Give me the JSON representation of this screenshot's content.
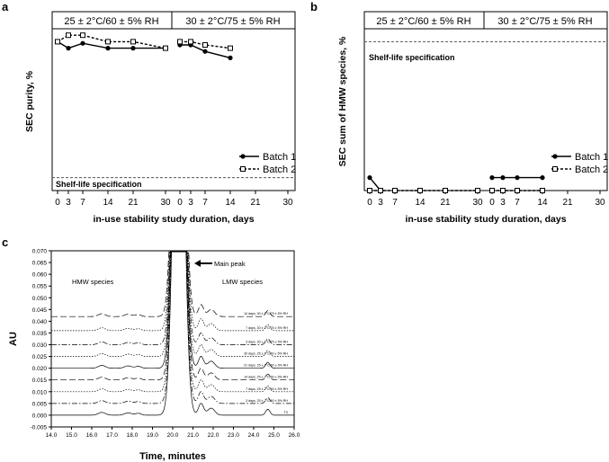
{
  "figure": {
    "panels": [
      {
        "label": "a",
        "ylabel": "SEC purity, %",
        "spec_label": "Shelf-life specification",
        "xlabel": "in-use stability study duration, days"
      },
      {
        "label": "b",
        "ylabel": "SEC sum of HMW species, %",
        "spec_label": "Shelf-life specification",
        "xlabel": "in-use stability study duration, days"
      },
      {
        "label": "c",
        "ylabel": "AU",
        "xlabel": "Time, minutes"
      }
    ],
    "condition_headers": [
      "25 ± 2°C/60 ± 5% RH",
      "30 ± 2°C/75 ± 5% RH"
    ],
    "legend": [
      "Batch 1",
      "Batch 2"
    ]
  },
  "chart_data": [
    {
      "type": "line",
      "panel": "a",
      "title": "",
      "xlabel": "in-use stability study duration, days",
      "ylabel": "SEC purity, %",
      "x_ticks": [
        0,
        3,
        7,
        14,
        21,
        30
      ],
      "segments": [
        "25 ± 2°C/60 ± 5% RH",
        "30 ± 2°C/75 ± 5% RH"
      ],
      "ylim": [
        0,
        100
      ],
      "spec_limit": 8,
      "series": [
        {
          "name": "Batch 1",
          "marker": "filled-circle",
          "seg1": {
            "x": [
              0,
              3,
              7,
              14,
              21,
              30
            ],
            "y": [
              92,
              88,
              91,
              88,
              88,
              88
            ]
          },
          "seg2": {
            "x": [
              0,
              3,
              7,
              14
            ],
            "y": [
              90,
              90,
              86,
              82
            ]
          }
        },
        {
          "name": "Batch 2",
          "marker": "open-square",
          "seg1": {
            "x": [
              0,
              3,
              7,
              14,
              21,
              30
            ],
            "y": [
              92,
              96,
              96,
              92,
              92,
              88
            ]
          },
          "seg2": {
            "x": [
              0,
              3,
              7,
              14
            ],
            "y": [
              92,
              92,
              90,
              88
            ]
          }
        }
      ]
    },
    {
      "type": "line",
      "panel": "b",
      "title": "",
      "xlabel": "in-use stability study duration, days",
      "ylabel": "SEC sum of HMW species, %",
      "x_ticks": [
        0,
        3,
        7,
        14,
        21,
        30
      ],
      "segments": [
        "25 ± 2°C/60 ± 5% RH",
        "30 ± 2°C/75 ± 5% RH"
      ],
      "ylim": [
        0,
        100
      ],
      "spec_limit": 92,
      "series": [
        {
          "name": "Batch 1",
          "marker": "filled-circle",
          "seg1": {
            "x": [
              0,
              3
            ],
            "y": [
              8,
              0
            ]
          },
          "seg2": {
            "x": [
              0,
              3,
              7,
              14
            ],
            "y": [
              8,
              8,
              8,
              8
            ]
          }
        },
        {
          "name": "Batch 2",
          "marker": "open-square",
          "seg1": {
            "x": [
              0,
              3,
              7,
              14,
              21,
              30
            ],
            "y": [
              0,
              0,
              0,
              0,
              0,
              0
            ]
          },
          "seg2": {
            "x": [
              0,
              3,
              7,
              14
            ],
            "y": [
              0,
              0,
              0,
              0
            ]
          }
        }
      ]
    },
    {
      "type": "line",
      "panel": "c",
      "title": "",
      "xlabel": "Time, minutes",
      "ylabel": "AU",
      "xlim": [
        14.0,
        26.0
      ],
      "ylim": [
        -0.005,
        0.07
      ],
      "x_ticks": [
        "14.0",
        "15.0",
        "16.0",
        "17.0",
        "18.0",
        "19.0",
        "20.0",
        "21.0",
        "22.0",
        "23.0",
        "24.0",
        "25.0",
        "26.0"
      ],
      "y_ticks": [
        "-0.005",
        "0.000",
        "0.005",
        "0.010",
        "0.015",
        "0.020",
        "0.025",
        "0.030",
        "0.035",
        "0.040",
        "0.045",
        "0.050",
        "0.055",
        "0.060",
        "0.065",
        "0.070"
      ],
      "annotations": {
        "main_peak": "Main peak",
        "hmw": "HMW species",
        "lmw": "LMW species"
      },
      "traces": [
        {
          "label": "T0",
          "offset": 0.0,
          "dash": "solid"
        },
        {
          "label": "3 days, 25 ± 2°C/60 ± 5% RH",
          "offset": 0.005,
          "dash": "dashdot"
        },
        {
          "label": "7 days, 25 ± 2°C/60 ± 5% RH",
          "offset": 0.01,
          "dash": "dotted"
        },
        {
          "label": "14 days, 25 ± 2°C/60 ± 5% RH",
          "offset": 0.015,
          "dash": "longdash"
        },
        {
          "label": "21 days, 25 ± 2°C/60 ± 5% RH",
          "offset": 0.02,
          "dash": "solid"
        },
        {
          "label": "30 days, 25 ± 2°C/60 ± 5% RH",
          "offset": 0.025,
          "dash": "dotted"
        },
        {
          "label": "3 days, 30 ± 2°C/75 ± 5% RH",
          "offset": 0.03,
          "dash": "dashdot"
        },
        {
          "label": "7 days, 30 ± 2°C/75 ± 5% RH",
          "offset": 0.036,
          "dash": "dotted"
        },
        {
          "label": "14 days, 30 ± 2°C/75 ± 5% RH",
          "offset": 0.042,
          "dash": "longdash"
        }
      ]
    }
  ]
}
